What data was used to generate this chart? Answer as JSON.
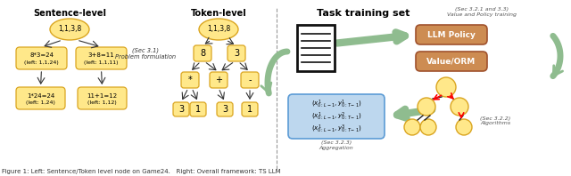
{
  "bg_color": "#ffffff",
  "fig_caption": "Figure 1: Left: Sentence/Token level node on Game24.   Right: Overall framework: TS LLM",
  "left_title1": "Sentence-level",
  "left_title2": "Token-level",
  "right_title": "Task training set",
  "node_fill": "#FFE88A",
  "node_edge": "#DAA520",
  "circle_fill": "#FFE88A",
  "circle_edge": "#DAA520",
  "operator_fill": "#FFE88A",
  "operator_edge": "#DAA520",
  "llm_fill": "#CD8C52",
  "llm_edge": "#A0522D",
  "value_fill": "#CD8C52",
  "value_edge": "#A0522D",
  "agg_fill": "#BDD7EE",
  "agg_edge": "#5B9BD5",
  "arrow_green": "#8FBC8F",
  "sec31_text": "(Sec 3.1)\nProblem formulation",
  "sec321_text": "(Sec 3.2.1 and 3.3)\nValue and Policy training",
  "sec322_text": "(Sec 3.2.2)\nAlgorithms",
  "sec323_text": "(Sec 3.2.3)\nAggregation"
}
